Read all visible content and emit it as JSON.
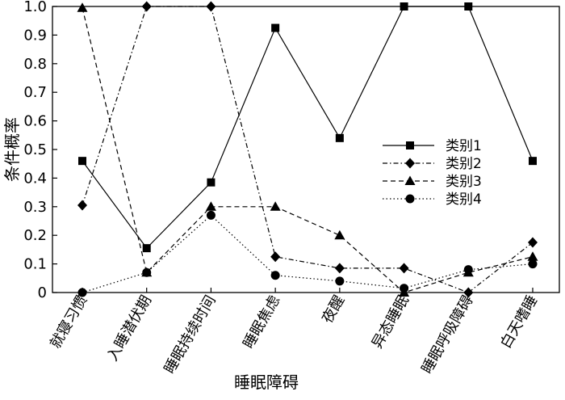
{
  "chart_data": {
    "type": "line",
    "title": "",
    "xlabel": "睡眠障碍",
    "ylabel": "条件概率",
    "ylim": [
      0,
      1.0
    ],
    "yticks": [
      "0",
      "0.1",
      "0.2",
      "0.3",
      "0.4",
      "0.5",
      "0.6",
      "0.7",
      "0.8",
      "0.9",
      "1.0"
    ],
    "grid": false,
    "legend_position": "right",
    "categories": [
      "就寝习惯",
      "入睡潜伏期",
      "睡眠持续时间",
      "睡眠焦虑",
      "夜醒",
      "异态睡眠",
      "睡眠呼吸障碍",
      "白天嗜睡"
    ],
    "series": [
      {
        "name": "类别1",
        "marker": "square",
        "dash": "solid",
        "values": [
          0.46,
          0.155,
          0.385,
          0.925,
          0.54,
          1.0,
          1.0,
          0.46
        ]
      },
      {
        "name": "类别2",
        "marker": "diamond",
        "dash": "dashdot",
        "values": [
          0.305,
          1.0,
          1.0,
          0.125,
          0.085,
          0.085,
          0.0,
          0.175
        ]
      },
      {
        "name": "类别3",
        "marker": "triangle",
        "dash": "dashed",
        "values": [
          0.995,
          0.07,
          0.3,
          0.3,
          0.2,
          0.0,
          0.07,
          0.125
        ]
      },
      {
        "name": "类别4",
        "marker": "circle",
        "dash": "dotted",
        "values": [
          0.0,
          0.07,
          0.27,
          0.06,
          0.04,
          0.015,
          0.08,
          0.1
        ]
      }
    ]
  }
}
